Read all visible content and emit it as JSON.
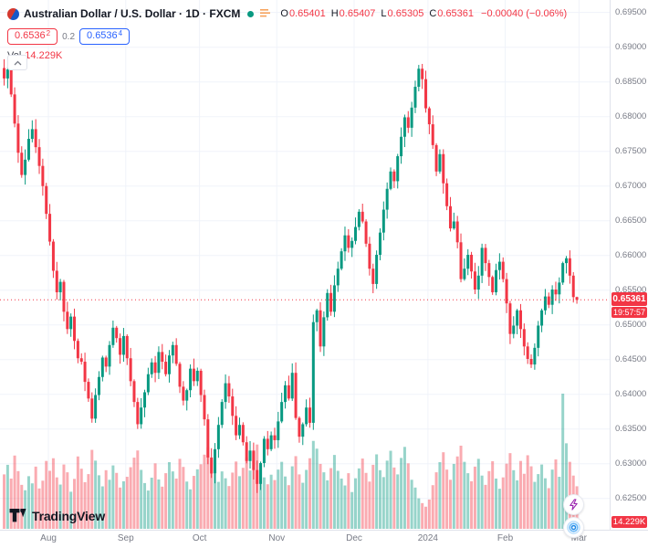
{
  "header": {
    "symbol_title": "Australian Dollar / U.S. Dollar · 1D · FXCM",
    "ohlc": {
      "o_label": "O",
      "o": "0.65401",
      "h_label": "H",
      "h": "0.65407",
      "l_label": "L",
      "l": "0.65305",
      "c_label": "C",
      "c": "0.65361",
      "change": "−0.00040 (−0.06%)"
    },
    "bid": {
      "main": "0.6536",
      "sup": "2"
    },
    "spread": "0.2",
    "ask": {
      "main": "0.6536",
      "sup": "4"
    },
    "vol_label": "Vol",
    "vol_value": "14.229K"
  },
  "axis": {
    "price_label": "0.65361",
    "countdown": "19:57:57",
    "volume_badge": "14.229K"
  },
  "footer": {
    "logo_text": "TradingView"
  },
  "colors": {
    "up": "#089981",
    "down": "#f23645",
    "accent_blue": "#2962ff",
    "grid": "#f0f3fa",
    "axis_text": "#787b86",
    "title_text": "#131722",
    "badge_red": "#f23645"
  },
  "chart_data": {
    "type": "candlestick+volume",
    "title": "Australian Dollar / U.S. Dollar · 1D · FXCM",
    "ylim": [
      0.6205,
      0.6968
    ],
    "grid": true,
    "price_ticks": [
      "0.69500",
      "0.69000",
      "0.68500",
      "0.68000",
      "0.67500",
      "0.67000",
      "0.66500",
      "0.66000",
      "0.65500",
      "0.65000",
      "0.64500",
      "0.64000",
      "0.63500",
      "0.63000",
      "0.62500"
    ],
    "time_ticks": [
      {
        "label": "Aug",
        "index": 13
      },
      {
        "label": "Sep",
        "index": 35
      },
      {
        "label": "Oct",
        "index": 56
      },
      {
        "label": "Nov",
        "index": 78
      },
      {
        "label": "Dec",
        "index": 100
      },
      {
        "label": "2024",
        "index": 121
      },
      {
        "label": "Feb",
        "index": 143
      },
      {
        "label": "Mar",
        "index": 164
      }
    ],
    "current_price": 0.65361,
    "last_candle": {
      "open": 0.65401,
      "high": 0.65407,
      "low": 0.65305,
      "close": 0.65361
    },
    "closes": [
      0.6855,
      0.6868,
      0.6832,
      0.679,
      0.6748,
      0.6716,
      0.6738,
      0.6768,
      0.6782,
      0.6756,
      0.6729,
      0.67,
      0.666,
      0.662,
      0.6578,
      0.6547,
      0.6562,
      0.6519,
      0.6494,
      0.6512,
      0.6477,
      0.6452,
      0.6447,
      0.6418,
      0.6394,
      0.6365,
      0.6399,
      0.6425,
      0.6453,
      0.644,
      0.6471,
      0.6496,
      0.6481,
      0.6457,
      0.6484,
      0.6452,
      0.6419,
      0.6389,
      0.6357,
      0.6381,
      0.6403,
      0.6429,
      0.6446,
      0.6431,
      0.6461,
      0.6447,
      0.6429,
      0.6456,
      0.6471,
      0.6444,
      0.6411,
      0.6391,
      0.6406,
      0.6437,
      0.6419,
      0.6434,
      0.6399,
      0.6364,
      0.6309,
      0.6286,
      0.6321,
      0.6356,
      0.6389,
      0.6416,
      0.6397,
      0.6369,
      0.6341,
      0.6356,
      0.6331,
      0.6304,
      0.6319,
      0.6291,
      0.6271,
      0.6301,
      0.6336,
      0.6321,
      0.6341,
      0.6334,
      0.6361,
      0.6389,
      0.6413,
      0.6394,
      0.6431,
      0.6366,
      0.6339,
      0.6357,
      0.6381,
      0.6359,
      0.6504,
      0.6521,
      0.6469,
      0.6511,
      0.6546,
      0.6519,
      0.6557,
      0.6581,
      0.6606,
      0.6629,
      0.6611,
      0.6621,
      0.6641,
      0.6663,
      0.6649,
      0.6617,
      0.6581,
      0.6559,
      0.6601,
      0.6633,
      0.6666,
      0.6696,
      0.6721,
      0.6707,
      0.6743,
      0.6771,
      0.6799,
      0.6784,
      0.6813,
      0.6843,
      0.6869,
      0.6854,
      0.6812,
      0.6789,
      0.6759,
      0.6721,
      0.6746,
      0.6704,
      0.6671,
      0.6639,
      0.6649,
      0.6619,
      0.6566,
      0.6581,
      0.6601,
      0.6577,
      0.6551,
      0.6571,
      0.6611,
      0.6589,
      0.6569,
      0.6547,
      0.6579,
      0.6591,
      0.6566,
      0.6531,
      0.6487,
      0.6499,
      0.6521,
      0.6494,
      0.6469,
      0.6451,
      0.6443,
      0.6467,
      0.6499,
      0.6521,
      0.6541,
      0.6529,
      0.6551,
      0.6544,
      0.6561,
      0.6589,
      0.6596,
      0.6571,
      0.65401,
      0.65361
    ],
    "volumes_k": [
      18.2,
      21.4,
      16.8,
      24.5,
      19.3,
      14.7,
      12.9,
      17.6,
      15.2,
      20.8,
      13.5,
      16.1,
      22.7,
      19.4,
      23.6,
      17.2,
      14.8,
      21.5,
      18.9,
      12.4,
      16.7,
      24.2,
      20.1,
      15.6,
      18.3,
      26.4,
      22.8,
      17.9,
      14.2,
      19.6,
      16.4,
      21.2,
      18.7,
      13.8,
      15.9,
      17.4,
      20.6,
      23.8,
      26.2,
      19.7,
      15.3,
      12.8,
      17.1,
      21.9,
      16.5,
      14.1,
      18.6,
      22.3,
      19.2,
      16.8,
      23.4,
      20.7,
      15.8,
      13.2,
      17.7,
      19.9,
      21.6,
      24.8,
      27.3,
      23.1,
      18.4,
      15.7,
      19.2,
      16.9,
      14.3,
      18.8,
      22.5,
      17.6,
      20.4,
      23.9,
      19.5,
      25.7,
      28.2,
      21.3,
      17.2,
      14.9,
      18.1,
      16.3,
      19.8,
      22.4,
      17.5,
      14.6,
      20.9,
      24.3,
      18.2,
      15.4,
      19.7,
      23.6,
      29.4,
      26.8,
      21.7,
      18.9,
      16.2,
      20.3,
      24.7,
      19.4,
      16.8,
      14.5,
      18.6,
      12.3,
      16.9,
      20.2,
      23.5,
      18.7,
      15.8,
      21.4,
      24.9,
      19.6,
      17.3,
      22.8,
      26.1,
      20.5,
      18.2,
      23.7,
      27.4,
      21.9,
      16.4,
      13.8,
      10.2,
      8.6,
      7.4,
      9.8,
      14.6,
      18.9,
      22.3,
      25.6,
      19.8,
      16.4,
      21.7,
      24.2,
      27.8,
      22.4,
      18.6,
      15.9,
      20.8,
      23.4,
      17.8,
      14.7,
      19.3,
      22.6,
      16.8,
      13.4,
      17.2,
      21.8,
      25.3,
      19.6,
      16.2,
      22.7,
      18.4,
      24.6,
      20.9,
      15.7,
      18.3,
      21.5,
      16.9,
      13.6,
      19.8,
      23.2,
      17.4,
      45.2,
      28.6,
      22.4,
      17.8,
      14.229
    ],
    "last_volume_label": "14.229K"
  }
}
